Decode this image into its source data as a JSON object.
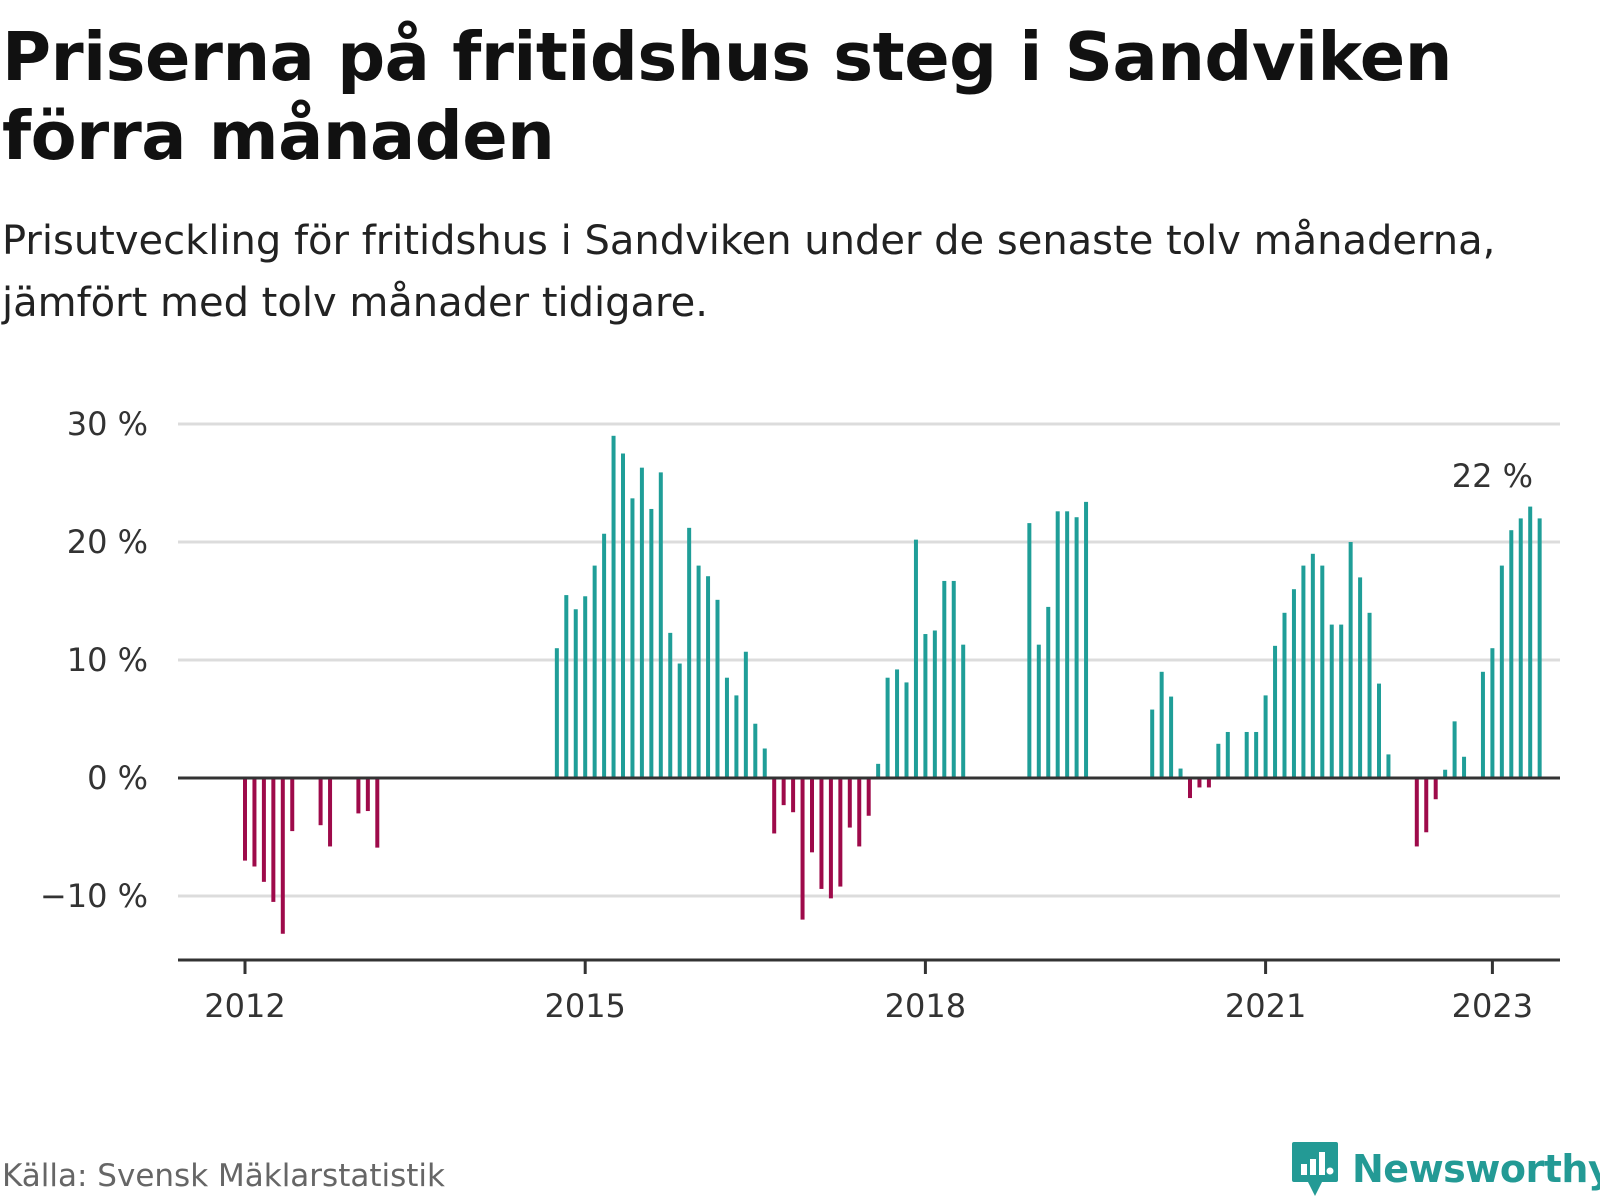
{
  "title": "Priserna på fritidshus steg i Sandviken förra månaden",
  "subtitle": "Prisutveckling för fritidshus i Sandviken under de senaste tolv månaderna, jämfört med tolv månader tidigare.",
  "source": "Källa: Svensk Mäklarstatistik",
  "brand": "Newsworthy",
  "colors": {
    "positive": "#1f9e98",
    "negative": "#9e0a4a",
    "grid": "#dcdcdc",
    "axis": "#333333",
    "brand": "#239a95"
  },
  "chart_data": {
    "type": "bar",
    "ylim": [
      -15,
      30
    ],
    "ytick_values": [
      -10,
      0,
      10,
      20,
      30
    ],
    "ytick_labels": [
      "−10 %",
      "0 %",
      "10 %",
      "20 %",
      "30 %"
    ],
    "xtick_values": [
      "2012-01",
      "2015-01",
      "2018-01",
      "2021-01",
      "2023-01"
    ],
    "xtick_labels": [
      "2012",
      "2015",
      "2018",
      "2021",
      "2023"
    ],
    "grid": true,
    "annotation": {
      "x": "2023-01",
      "text": "22 %"
    },
    "series": [
      {
        "points": [
          [
            "2012-01",
            -7
          ],
          [
            "2012-02",
            -7.5
          ],
          [
            "2012-03",
            -8.8
          ],
          [
            "2012-04",
            -10.5
          ],
          [
            "2012-05",
            -13.2
          ],
          [
            "2012-06",
            -4.5
          ],
          [
            "2012-09",
            -4
          ],
          [
            "2012-10",
            -5.8
          ],
          [
            "2013-01",
            -3
          ],
          [
            "2013-02",
            -2.8
          ],
          [
            "2013-03",
            -5.9
          ],
          [
            "2014-10",
            11
          ],
          [
            "2014-11",
            15.5
          ],
          [
            "2014-12",
            14.3
          ],
          [
            "2015-01",
            15.4
          ],
          [
            "2015-02",
            18
          ],
          [
            "2015-03",
            20.7
          ],
          [
            "2015-04",
            29
          ],
          [
            "2015-05",
            27.5
          ],
          [
            "2015-06",
            23.7
          ],
          [
            "2015-07",
            26.3
          ],
          [
            "2015-08",
            22.8
          ],
          [
            "2015-09",
            25.9
          ],
          [
            "2015-10",
            12.3
          ],
          [
            "2015-11",
            9.7
          ],
          [
            "2015-12",
            21.2
          ],
          [
            "2016-01",
            18
          ],
          [
            "2016-02",
            17.1
          ],
          [
            "2016-03",
            15.1
          ],
          [
            "2016-04",
            8.5
          ],
          [
            "2016-05",
            7
          ],
          [
            "2016-06",
            10.7
          ],
          [
            "2016-07",
            4.6
          ],
          [
            "2016-08",
            2.5
          ],
          [
            "2016-09",
            -4.7
          ],
          [
            "2016-10",
            -2.3
          ],
          [
            "2016-11",
            -2.9
          ],
          [
            "2016-12",
            -12
          ],
          [
            "2017-01",
            -6.3
          ],
          [
            "2017-02",
            -9.4
          ],
          [
            "2017-03",
            -10.2
          ],
          [
            "2017-04",
            -9.2
          ],
          [
            "2017-05",
            -4.2
          ],
          [
            "2017-06",
            -5.8
          ],
          [
            "2017-07",
            -3.2
          ],
          [
            "2017-08",
            1.2
          ],
          [
            "2017-09",
            8.5
          ],
          [
            "2017-10",
            9.2
          ],
          [
            "2017-11",
            8.1
          ],
          [
            "2017-12",
            20.2
          ],
          [
            "2018-01",
            12.2
          ],
          [
            "2018-02",
            12.5
          ],
          [
            "2018-03",
            16.7
          ],
          [
            "2018-04",
            16.7
          ],
          [
            "2018-05",
            11.3
          ],
          [
            "2018-12",
            21.6
          ],
          [
            "2019-01",
            11.3
          ],
          [
            "2019-02",
            14.5
          ],
          [
            "2019-03",
            22.6
          ],
          [
            "2019-04",
            22.6
          ],
          [
            "2019-05",
            22.1
          ],
          [
            "2019-06",
            23.4
          ],
          [
            "2020-01",
            5.8
          ],
          [
            "2020-02",
            9
          ],
          [
            "2020-03",
            6.9
          ],
          [
            "2020-04",
            0.8
          ],
          [
            "2020-05",
            -1.7
          ],
          [
            "2020-06",
            -0.8
          ],
          [
            "2020-07",
            -0.8
          ],
          [
            "2020-08",
            2.9
          ],
          [
            "2020-09",
            3.9
          ],
          [
            "2020-11",
            3.9
          ],
          [
            "2020-12",
            3.9
          ],
          [
            "2021-01",
            7
          ],
          [
            "2021-02",
            11.2
          ],
          [
            "2021-03",
            14
          ],
          [
            "2021-04",
            16
          ],
          [
            "2021-05",
            18
          ],
          [
            "2021-06",
            19
          ],
          [
            "2021-07",
            18
          ],
          [
            "2021-08",
            13
          ],
          [
            "2021-09",
            13
          ],
          [
            "2021-10",
            20
          ],
          [
            "2021-11",
            17
          ],
          [
            "2021-12",
            14
          ],
          [
            "2022-01",
            8
          ],
          [
            "2022-02",
            2
          ],
          [
            "2022-05",
            -5.8
          ],
          [
            "2022-06",
            -4.6
          ],
          [
            "2022-07",
            -1.8
          ],
          [
            "2022-08",
            0.7
          ],
          [
            "2022-09",
            4.8
          ],
          [
            "2022-10",
            1.8
          ],
          [
            "2022-12",
            9
          ],
          [
            "2023-01",
            11
          ],
          [
            "2023-02",
            18
          ],
          [
            "2023-03",
            21
          ],
          [
            "2023-04",
            22
          ],
          [
            "2023-05",
            23
          ],
          [
            "2023-06",
            22
          ]
        ]
      }
    ]
  }
}
